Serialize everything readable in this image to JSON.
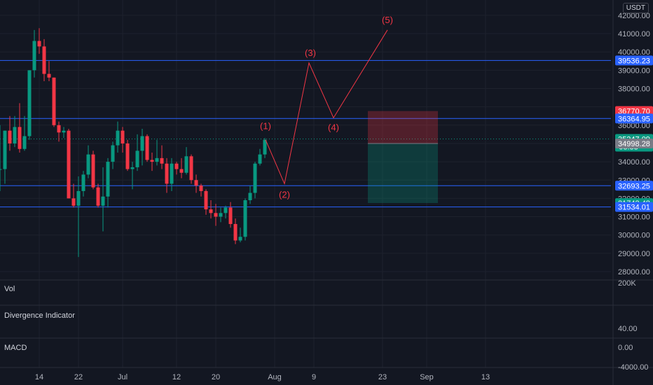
{
  "currency": "USDT",
  "price_axis": {
    "ticks": [
      "42000.00",
      "41000.00",
      "40000.00",
      "39000.00",
      "38000.00",
      "36000.00",
      "34000.00",
      "33000.00",
      "32000.00",
      "31000.00",
      "30000.00",
      "29000.00",
      "28000.00"
    ],
    "hidden_ticks": [
      "37000.00",
      "35000.00"
    ],
    "ylim": [
      27200,
      43000
    ]
  },
  "horizontal_levels": [
    {
      "value": 39536.23,
      "label": "39536.23",
      "color": "#2962ff"
    },
    {
      "value": 36364.95,
      "label": "36364.95",
      "color": "#2962ff"
    },
    {
      "value": 32693.25,
      "label": "32693.25",
      "color": "#2962ff"
    },
    {
      "value": 31534.01,
      "label": "31534.01",
      "color": "#2962ff"
    }
  ],
  "position_tool": {
    "stop_label": "36770.70",
    "entry_label": "34998.28",
    "target_label": "31743.48",
    "stop_value": 36770.7,
    "entry_value": 34998.28,
    "target_value": 31743.48,
    "stop_color": "#f23645",
    "target_color": "#089981"
  },
  "last_price": {
    "value": 35247.09,
    "label": "35247.09",
    "countdown": "08:33",
    "color": "#089981"
  },
  "wave_labels": [
    "(1)",
    "(2)",
    "(3)",
    "(4)",
    "(5)"
  ],
  "panes": {
    "volume": {
      "label": "Vol",
      "axis_tick": "200K"
    },
    "divergence": {
      "label": "Divergence Indicator",
      "axis_tick": "40.00"
    },
    "macd": {
      "label": "MACD",
      "axis_tick_top": "0.00",
      "axis_tick_bottom": "-4000.00"
    }
  },
  "time_axis": [
    "14",
    "22",
    "Jul",
    "12",
    "20",
    "Aug",
    "9",
    "23",
    "Sep",
    "13"
  ],
  "chart_data": {
    "type": "candlestick",
    "candles": [
      {
        "o": 33600,
        "h": 36000,
        "l": 32400,
        "c": 33600
      },
      {
        "o": 33600,
        "h": 35700,
        "l": 32800,
        "c": 35700
      },
      {
        "o": 35700,
        "h": 36500,
        "l": 34600,
        "c": 35000
      },
      {
        "o": 35000,
        "h": 36500,
        "l": 34800,
        "c": 35900
      },
      {
        "o": 35900,
        "h": 37200,
        "l": 34500,
        "c": 34700
      },
      {
        "o": 34700,
        "h": 36500,
        "l": 34600,
        "c": 35400
      },
      {
        "o": 35400,
        "h": 39000,
        "l": 35200,
        "c": 39000
      },
      {
        "o": 39000,
        "h": 41200,
        "l": 38600,
        "c": 40600
      },
      {
        "o": 40600,
        "h": 41300,
        "l": 39900,
        "c": 40300
      },
      {
        "o": 40300,
        "h": 40700,
        "l": 38400,
        "c": 38800
      },
      {
        "o": 38800,
        "h": 39500,
        "l": 38400,
        "c": 38600
      },
      {
        "o": 38600,
        "h": 38600,
        "l": 35900,
        "c": 36000
      },
      {
        "o": 36000,
        "h": 36200,
        "l": 35100,
        "c": 35600
      },
      {
        "o": 35600,
        "h": 35900,
        "l": 35300,
        "c": 35700
      },
      {
        "o": 35700,
        "h": 35800,
        "l": 32000,
        "c": 32000
      },
      {
        "o": 32000,
        "h": 32800,
        "l": 31500,
        "c": 31600
      },
      {
        "o": 31600,
        "h": 33200,
        "l": 28800,
        "c": 32400
      },
      {
        "o": 32400,
        "h": 33500,
        "l": 32100,
        "c": 33300
      },
      {
        "o": 33300,
        "h": 34900,
        "l": 33100,
        "c": 34400
      },
      {
        "o": 34400,
        "h": 34600,
        "l": 32500,
        "c": 32600
      },
      {
        "o": 32600,
        "h": 32800,
        "l": 31500,
        "c": 31600
      },
      {
        "o": 31600,
        "h": 33700,
        "l": 30200,
        "c": 32100
      },
      {
        "o": 32100,
        "h": 34200,
        "l": 31500,
        "c": 34000
      },
      {
        "o": 34000,
        "h": 35100,
        "l": 33600,
        "c": 34900
      },
      {
        "o": 34900,
        "h": 36200,
        "l": 34500,
        "c": 35700
      },
      {
        "o": 35700,
        "h": 35900,
        "l": 34500,
        "c": 35000
      },
      {
        "o": 35000,
        "h": 35200,
        "l": 33500,
        "c": 33600
      },
      {
        "o": 33600,
        "h": 34000,
        "l": 32500,
        "c": 33700
      },
      {
        "o": 33700,
        "h": 35500,
        "l": 33500,
        "c": 34600
      },
      {
        "o": 34600,
        "h": 35800,
        "l": 33800,
        "c": 35400
      },
      {
        "o": 35400,
        "h": 35500,
        "l": 34000,
        "c": 34100
      },
      {
        "o": 34100,
        "h": 34500,
        "l": 33500,
        "c": 34000
      },
      {
        "o": 34000,
        "h": 35200,
        "l": 33800,
        "c": 34200
      },
      {
        "o": 34200,
        "h": 34900,
        "l": 33600,
        "c": 33900
      },
      {
        "o": 33900,
        "h": 34200,
        "l": 32300,
        "c": 32800
      },
      {
        "o": 32800,
        "h": 34200,
        "l": 32400,
        "c": 33900
      },
      {
        "o": 33900,
        "h": 34000,
        "l": 33300,
        "c": 33600
      },
      {
        "o": 33600,
        "h": 34200,
        "l": 33100,
        "c": 33400
      },
      {
        "o": 33400,
        "h": 34800,
        "l": 33300,
        "c": 34300
      },
      {
        "o": 34300,
        "h": 34400,
        "l": 32800,
        "c": 33000
      },
      {
        "o": 33000,
        "h": 33300,
        "l": 32300,
        "c": 32700
      },
      {
        "o": 32700,
        "h": 32800,
        "l": 32100,
        "c": 32400
      },
      {
        "o": 32400,
        "h": 32500,
        "l": 31100,
        "c": 31400
      },
      {
        "o": 31400,
        "h": 31900,
        "l": 30900,
        "c": 31200
      },
      {
        "o": 31200,
        "h": 31700,
        "l": 30500,
        "c": 31000
      },
      {
        "o": 31000,
        "h": 31500,
        "l": 30700,
        "c": 31200
      },
      {
        "o": 31200,
        "h": 31600,
        "l": 30900,
        "c": 31500
      },
      {
        "o": 31500,
        "h": 31800,
        "l": 30400,
        "c": 30600
      },
      {
        "o": 30600,
        "h": 30900,
        "l": 29500,
        "c": 29700
      },
      {
        "o": 29700,
        "h": 30400,
        "l": 29600,
        "c": 29900
      },
      {
        "o": 29900,
        "h": 32000,
        "l": 29700,
        "c": 31900
      },
      {
        "o": 31900,
        "h": 32700,
        "l": 31700,
        "c": 32300
      },
      {
        "o": 32300,
        "h": 34000,
        "l": 32000,
        "c": 33900
      },
      {
        "o": 33900,
        "h": 34700,
        "l": 33800,
        "c": 34400
      },
      {
        "o": 34400,
        "h": 35300,
        "l": 34200,
        "c": 35200
      }
    ],
    "wave_path": [
      {
        "label": "(1)",
        "date": "Jul 24",
        "value": 35250
      },
      {
        "label": "(2)",
        "date": "Aug 3",
        "value": 32800
      },
      {
        "label": "(3)",
        "date": "Aug 8",
        "value": 39400
      },
      {
        "label": "(4)",
        "date": "Aug 13",
        "value": 36400
      },
      {
        "label": "(5)",
        "date": "Aug 24",
        "value": 41200
      }
    ]
  }
}
